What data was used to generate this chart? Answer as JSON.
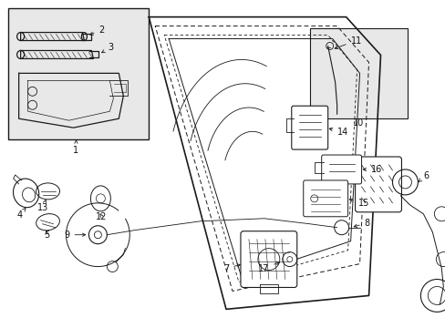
{
  "bg_color": "#ffffff",
  "fig_width": 4.89,
  "fig_height": 3.6,
  "dpi": 100,
  "line_color": "#1a1a1a",
  "label_fontsize": 7.0,
  "inset_bg": "#e8e8e8",
  "inset10_bg": "#e8e8e8"
}
